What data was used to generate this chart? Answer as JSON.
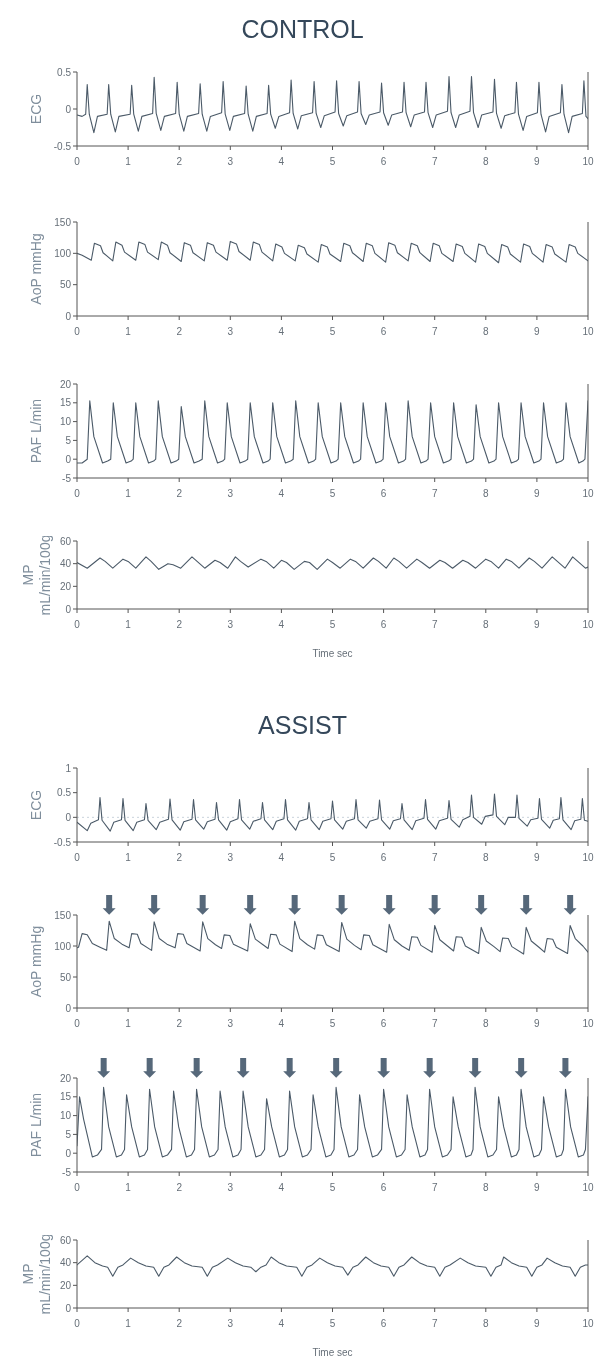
{
  "chart_data": [
    {
      "type": "line",
      "title": "CONTROL",
      "ylabel": "ECG",
      "color": "#4b5a68",
      "xlim": [
        0,
        10
      ],
      "xticks": [
        0,
        1,
        2,
        3,
        4,
        5,
        6,
        7,
        8,
        9,
        10
      ],
      "ylim": [
        -0.5,
        0.5
      ],
      "yticks": [
        -0.5,
        0,
        0.5
      ],
      "x": [
        0,
        0.1,
        0.17,
        0.2,
        0.24,
        0.33,
        0.4,
        0.59,
        0.62,
        0.66,
        0.75,
        0.82,
        1.04,
        1.07,
        1.11,
        1.2,
        1.27,
        1.48,
        1.51,
        1.55,
        1.64,
        1.71,
        1.93,
        1.96,
        2,
        2.09,
        2.16,
        2.38,
        2.41,
        2.45,
        2.54,
        2.61,
        2.83,
        2.86,
        2.9,
        2.99,
        3.06,
        3.28,
        3.31,
        3.35,
        3.44,
        3.51,
        3.72,
        3.75,
        3.79,
        3.88,
        3.95,
        4.16,
        4.19,
        4.23,
        4.32,
        4.39,
        4.61,
        4.64,
        4.68,
        4.77,
        4.84,
        5.05,
        5.08,
        5.12,
        5.21,
        5.28,
        5.49,
        5.52,
        5.56,
        5.65,
        5.72,
        5.93,
        5.96,
        6,
        6.09,
        6.16,
        6.37,
        6.4,
        6.44,
        6.53,
        6.6,
        6.8,
        6.83,
        6.87,
        6.96,
        7.03,
        7.25,
        7.28,
        7.32,
        7.41,
        7.48,
        7.69,
        7.72,
        7.76,
        7.85,
        7.92,
        8.14,
        8.17,
        8.21,
        8.3,
        8.37,
        8.57,
        8.6,
        8.64,
        8.73,
        8.8,
        9.01,
        9.04,
        9.08,
        9.17,
        9.24,
        9.46,
        9.49,
        9.53,
        9.62,
        9.69,
        9.89,
        9.92,
        9.96,
        10
      ],
      "values": [
        -0.08,
        -0.1,
        -0.07,
        0.33,
        -0.07,
        -0.32,
        -0.1,
        -0.07,
        0.33,
        -0.07,
        -0.31,
        -0.1,
        -0.07,
        0.32,
        -0.07,
        -0.3,
        -0.1,
        -0.06,
        0.43,
        -0.06,
        -0.29,
        -0.1,
        -0.06,
        0.36,
        -0.07,
        -0.3,
        -0.1,
        -0.06,
        0.34,
        -0.07,
        -0.3,
        -0.1,
        -0.05,
        0.37,
        -0.07,
        -0.29,
        -0.1,
        -0.06,
        0.31,
        -0.07,
        -0.3,
        -0.1,
        -0.06,
        0.32,
        -0.07,
        -0.26,
        -0.1,
        -0.05,
        0.39,
        -0.06,
        -0.27,
        -0.09,
        -0.05,
        0.37,
        -0.06,
        -0.25,
        -0.09,
        -0.04,
        0.38,
        -0.06,
        -0.23,
        -0.09,
        -0.04,
        0.37,
        -0.06,
        -0.21,
        -0.08,
        -0.04,
        0.35,
        -0.05,
        -0.22,
        -0.08,
        -0.04,
        0.36,
        -0.05,
        -0.24,
        -0.08,
        -0.04,
        0.36,
        -0.05,
        -0.25,
        -0.08,
        -0.03,
        0.44,
        -0.05,
        -0.25,
        -0.08,
        -0.03,
        0.44,
        -0.05,
        -0.25,
        -0.08,
        -0.04,
        0.4,
        -0.06,
        -0.26,
        -0.09,
        -0.05,
        0.36,
        -0.07,
        -0.29,
        -0.1,
        -0.05,
        0.36,
        -0.07,
        -0.31,
        -0.1,
        -0.05,
        0.33,
        -0.07,
        -0.32,
        -0.1,
        -0.06,
        0.38,
        -0.1,
        -0.13
      ]
    },
    {
      "type": "line",
      "ylabel": "AoP mmHg",
      "color": "#4b5a68",
      "xlim": [
        0,
        10
      ],
      "xticks": [
        0,
        1,
        2,
        3,
        4,
        5,
        6,
        7,
        8,
        9,
        10
      ],
      "ylim": [
        0,
        150
      ],
      "yticks": [
        0,
        50,
        100,
        150
      ],
      "x": [
        0,
        0.1,
        0.28,
        0.34,
        0.46,
        0.51,
        0.7,
        0.76,
        0.88,
        0.93,
        1.15,
        1.21,
        1.33,
        1.38,
        1.59,
        1.65,
        1.77,
        1.82,
        2.04,
        2.1,
        2.22,
        2.27,
        2.49,
        2.55,
        2.67,
        2.72,
        2.94,
        3,
        3.12,
        3.17,
        3.39,
        3.45,
        3.57,
        3.62,
        3.83,
        3.89,
        4.01,
        4.06,
        4.27,
        4.33,
        4.45,
        4.5,
        4.72,
        4.78,
        4.9,
        4.95,
        5.16,
        5.22,
        5.34,
        5.39,
        5.6,
        5.66,
        5.78,
        5.83,
        6.04,
        6.1,
        6.22,
        6.27,
        6.48,
        6.54,
        6.66,
        6.71,
        6.91,
        6.97,
        7.09,
        7.14,
        7.36,
        7.42,
        7.54,
        7.59,
        7.8,
        7.86,
        7.98,
        8.03,
        8.25,
        8.31,
        8.43,
        8.48,
        8.68,
        8.74,
        8.86,
        8.91,
        9.12,
        9.18,
        9.3,
        9.35,
        9.57,
        9.63,
        9.75,
        9.8,
        10
      ],
      "values": [
        100,
        97,
        89,
        116,
        112,
        101,
        88,
        118,
        113,
        102,
        89,
        118,
        114,
        102,
        90,
        118,
        113,
        101,
        87,
        117,
        113,
        101,
        88,
        117,
        113,
        102,
        89,
        119,
        115,
        103,
        89,
        118,
        114,
        102,
        88,
        115,
        110,
        100,
        88,
        113,
        109,
        99,
        86,
        114,
        110,
        99,
        87,
        116,
        112,
        101,
        87,
        116,
        112,
        100,
        86,
        117,
        113,
        101,
        88,
        116,
        112,
        101,
        87,
        116,
        112,
        100,
        87,
        115,
        111,
        100,
        86,
        115,
        111,
        100,
        85,
        114,
        110,
        99,
        86,
        115,
        111,
        100,
        86,
        114,
        110,
        99,
        86,
        114,
        110,
        100,
        88
      ]
    },
    {
      "type": "line",
      "ylabel": "PAF L/min",
      "color": "#4b5a68",
      "xlim": [
        0,
        10
      ],
      "xticks": [
        0,
        1,
        2,
        3,
        4,
        5,
        6,
        7,
        8,
        9,
        10
      ],
      "ylim": [
        -5,
        20
      ],
      "yticks": [
        -5,
        0,
        5,
        10,
        15,
        20
      ],
      "x": [
        0,
        0.1,
        0.2,
        0.25,
        0.33,
        0.5,
        0.6,
        0.66,
        0.71,
        0.79,
        0.96,
        1.06,
        1.1,
        1.15,
        1.23,
        1.4,
        1.5,
        1.54,
        1.59,
        1.67,
        1.84,
        1.94,
        1.99,
        2.04,
        2.12,
        2.29,
        2.39,
        2.45,
        2.5,
        2.58,
        2.75,
        2.85,
        2.89,
        2.94,
        3.02,
        3.19,
        3.29,
        3.34,
        3.39,
        3.47,
        3.64,
        3.74,
        3.78,
        3.83,
        3.91,
        4.08,
        4.18,
        4.23,
        4.28,
        4.36,
        4.53,
        4.63,
        4.67,
        4.72,
        4.8,
        4.97,
        5.07,
        5.11,
        5.16,
        5.24,
        5.41,
        5.51,
        5.55,
        5.6,
        5.68,
        5.85,
        5.95,
        5.99,
        6.04,
        6.12,
        6.29,
        6.39,
        6.43,
        6.48,
        6.56,
        6.73,
        6.83,
        6.87,
        6.92,
        7,
        7.17,
        7.27,
        7.32,
        7.37,
        7.45,
        7.62,
        7.72,
        7.76,
        7.81,
        7.89,
        8.06,
        8.16,
        8.2,
        8.25,
        8.33,
        8.5,
        8.6,
        8.64,
        8.69,
        8.77,
        8.94,
        9.04,
        9.08,
        9.13,
        9.21,
        9.38,
        9.48,
        9.52,
        9.57,
        9.65,
        9.82,
        9.9,
        9.94,
        10
      ],
      "values": [
        -1,
        -1,
        0,
        15.5,
        6,
        -1,
        -0.5,
        0,
        15,
        6,
        -1,
        -0.5,
        0,
        15,
        6,
        -1,
        -0.5,
        0,
        15.5,
        6,
        -1,
        -0.5,
        0,
        14,
        6,
        -1,
        -0.5,
        0,
        15.5,
        6,
        -1,
        -0.5,
        0,
        15,
        6,
        -1,
        -0.5,
        0,
        15,
        6,
        -1,
        -0.5,
        0,
        15,
        6,
        -1,
        -0.5,
        0,
        15.5,
        6,
        -1,
        -0.5,
        0,
        15,
        6,
        -1,
        -0.5,
        0,
        15,
        6,
        -1,
        -0.5,
        0,
        15,
        6,
        -1,
        -0.5,
        0,
        15,
        6,
        -1,
        -0.5,
        0,
        15.5,
        6,
        -1,
        -0.5,
        0,
        15,
        6,
        -1,
        -0.5,
        0,
        15,
        6,
        -1,
        -0.5,
        0,
        14.5,
        6,
        -1,
        -0.5,
        0,
        15,
        6,
        -1,
        -0.5,
        0,
        15,
        6,
        -1,
        -0.5,
        0,
        15,
        6,
        -1,
        -0.5,
        0,
        15,
        6,
        -1,
        -0.5,
        0,
        15.5
      ]
    },
    {
      "type": "line",
      "ylabel": "MP mL/min/100g",
      "xlabel": "Time sec",
      "color": "#4b5a68",
      "xlim": [
        0,
        10
      ],
      "xticks": [
        0,
        1,
        2,
        3,
        4,
        5,
        6,
        7,
        8,
        9,
        10
      ],
      "ylim": [
        0,
        60
      ],
      "yticks": [
        0,
        20,
        40,
        60
      ],
      "x": [
        0,
        0.2,
        0.45,
        0.55,
        0.7,
        0.9,
        1,
        1.15,
        1.35,
        1.45,
        1.6,
        1.78,
        1.88,
        2.03,
        2.25,
        2.35,
        2.5,
        2.7,
        2.8,
        2.95,
        3.1,
        3.2,
        3.35,
        3.6,
        3.7,
        3.85,
        4,
        4.1,
        4.25,
        4.45,
        4.55,
        4.7,
        4.9,
        5,
        5.15,
        5.35,
        5.45,
        5.6,
        5.8,
        5.9,
        6.05,
        6.2,
        6.3,
        6.45,
        6.65,
        6.75,
        6.9,
        7.1,
        7.2,
        7.35,
        7.55,
        7.65,
        7.8,
        8,
        8.1,
        8.25,
        8.4,
        8.5,
        8.65,
        8.85,
        8.95,
        9.1,
        9.3,
        9.4,
        9.55,
        9.7,
        9.8,
        9.95,
        10
      ],
      "values": [
        41,
        36,
        45,
        42,
        36,
        44,
        42,
        36,
        46,
        42,
        35,
        40,
        39,
        36,
        46,
        42,
        36,
        43,
        41,
        36,
        46,
        42,
        37,
        44,
        42,
        36,
        43,
        41,
        35,
        42,
        41,
        35,
        44,
        41,
        36,
        44,
        42,
        36,
        45,
        42,
        36,
        45,
        42,
        36,
        44,
        41,
        36,
        43,
        41,
        36,
        43,
        41,
        36,
        44,
        42,
        36,
        44,
        42,
        36,
        45,
        42,
        36,
        46,
        42,
        36,
        46,
        42,
        36,
        37
      ]
    },
    {
      "type": "line",
      "title": "ASSIST",
      "ylabel": "ECG",
      "color": "#4b5a68",
      "xlim": [
        0,
        10
      ],
      "xticks": [
        0,
        1,
        2,
        3,
        4,
        5,
        6,
        7,
        8,
        9,
        10
      ],
      "ylim": [
        -0.5,
        1
      ],
      "yticks": [
        -0.5,
        0,
        0.5,
        1
      ],
      "ref_lines": [
        {
          "axis": "y",
          "value": 0,
          "color": "#c9d3dc",
          "line_style": "dotted"
        }
      ],
      "x": [
        0,
        0.2,
        0.27,
        0.42,
        0.45,
        0.49,
        0.65,
        0.72,
        0.87,
        0.9,
        0.94,
        1.1,
        1.17,
        1.32,
        1.35,
        1.39,
        1.55,
        1.62,
        1.79,
        1.82,
        1.86,
        2.02,
        2.09,
        2.25,
        2.28,
        2.32,
        2.48,
        2.55,
        2.7,
        2.73,
        2.77,
        2.93,
        3,
        3.15,
        3.18,
        3.22,
        3.38,
        3.45,
        3.6,
        3.63,
        3.67,
        3.83,
        3.9,
        4.05,
        4.08,
        4.12,
        4.28,
        4.35,
        4.51,
        4.54,
        4.58,
        4.74,
        4.81,
        4.97,
        5,
        5.04,
        5.2,
        5.27,
        5.43,
        5.46,
        5.5,
        5.66,
        5.73,
        5.89,
        5.92,
        5.96,
        6.12,
        6.19,
        6.33,
        6.36,
        6.4,
        6.56,
        6.63,
        6.79,
        6.82,
        6.86,
        7.02,
        7.09,
        7.25,
        7.28,
        7.32,
        7.48,
        7.55,
        7.69,
        7.72,
        7.76,
        7.92,
        7.99,
        8.14,
        8.17,
        8.21,
        8.37,
        8.44,
        8.58,
        8.61,
        8.65,
        8.81,
        8.88,
        9.02,
        9.05,
        9.09,
        9.25,
        9.32,
        9.44,
        9.47,
        9.51,
        9.67,
        9.74,
        9.86,
        9.89,
        9.93,
        10
      ],
      "values": [
        -0.1,
        -0.27,
        -0.12,
        -0.05,
        0.4,
        -0.06,
        -0.28,
        -0.1,
        -0.05,
        0.38,
        -0.06,
        -0.27,
        -0.1,
        -0.05,
        0.28,
        -0.06,
        -0.25,
        -0.1,
        -0.04,
        0.37,
        -0.05,
        -0.26,
        -0.09,
        -0.04,
        0.36,
        -0.05,
        -0.24,
        -0.09,
        -0.04,
        0.3,
        -0.05,
        -0.26,
        -0.09,
        -0.03,
        0.36,
        -0.05,
        -0.24,
        -0.08,
        -0.03,
        0.3,
        -0.05,
        -0.25,
        -0.08,
        -0.03,
        0.36,
        -0.05,
        -0.26,
        -0.08,
        -0.03,
        0.3,
        -0.05,
        -0.25,
        -0.08,
        -0.03,
        0.33,
        -0.05,
        -0.24,
        -0.08,
        -0.03,
        0.36,
        -0.05,
        -0.22,
        -0.08,
        -0.03,
        0.35,
        -0.05,
        -0.24,
        -0.07,
        -0.03,
        0.28,
        -0.05,
        -0.25,
        -0.07,
        -0.02,
        0.36,
        -0.04,
        -0.24,
        -0.07,
        -0.02,
        0.34,
        -0.04,
        -0.2,
        -0.05,
        0.02,
        0.45,
        0,
        -0.14,
        0.02,
        0.05,
        0.47,
        0.02,
        -0.15,
        0,
        0,
        0.45,
        -0.02,
        -0.18,
        -0.05,
        -0.02,
        0.38,
        -0.04,
        -0.22,
        -0.06,
        -0.03,
        0.4,
        -0.05,
        -0.25,
        -0.07,
        -0.04,
        0.38,
        -0.06,
        -0.08
      ]
    },
    {
      "type": "line",
      "ylabel": "AoP mmHg",
      "color": "#4b5a68",
      "xlim": [
        0,
        10
      ],
      "xticks": [
        0,
        1,
        2,
        3,
        4,
        5,
        6,
        7,
        8,
        9,
        10
      ],
      "ylim": [
        0,
        150
      ],
      "yticks": [
        0,
        50,
        100,
        150
      ],
      "annotations": [
        {
          "text": "⬇",
          "x": 0.63,
          "y": 140
        },
        {
          "text": "⬇",
          "x": 1.51,
          "y": 139
        },
        {
          "text": "⬇",
          "x": 2.46,
          "y": 139
        },
        {
          "text": "⬇",
          "x": 3.39,
          "y": 136
        },
        {
          "text": "⬇",
          "x": 4.26,
          "y": 140
        },
        {
          "text": "⬇",
          "x": 5.18,
          "y": 138
        },
        {
          "text": "⬇",
          "x": 6.11,
          "y": 135
        },
        {
          "text": "⬇",
          "x": 7,
          "y": 133
        },
        {
          "text": "⬇",
          "x": 7.91,
          "y": 130
        },
        {
          "text": "⬇",
          "x": 8.79,
          "y": 130
        },
        {
          "text": "⬇",
          "x": 9.65,
          "y": 133
        }
      ],
      "x": [
        0,
        0.03,
        0.1,
        0.2,
        0.3,
        0.45,
        0.58,
        0.63,
        0.73,
        0.88,
        1.02,
        1.07,
        1.18,
        1.25,
        1.46,
        1.51,
        1.61,
        1.76,
        1.92,
        1.97,
        2.08,
        2.15,
        2.41,
        2.46,
        2.56,
        2.71,
        2.83,
        2.88,
        2.99,
        3.06,
        3.34,
        3.39,
        3.49,
        3.64,
        3.74,
        3.79,
        3.9,
        3.97,
        4.21,
        4.26,
        4.36,
        4.51,
        4.65,
        4.7,
        4.81,
        4.88,
        5.13,
        5.18,
        5.28,
        5.43,
        5.56,
        5.61,
        5.72,
        5.79,
        6.06,
        6.11,
        6.21,
        6.36,
        6.5,
        6.55,
        6.66,
        6.73,
        6.95,
        7,
        7.1,
        7.25,
        7.37,
        7.42,
        7.53,
        7.6,
        7.86,
        7.91,
        8.01,
        8.16,
        8.28,
        8.33,
        8.44,
        8.51,
        8.74,
        8.79,
        8.89,
        9.04,
        9.15,
        9.2,
        9.31,
        9.38,
        9.6,
        9.65,
        9.75,
        9.9,
        10
      ],
      "values": [
        97,
        98,
        120,
        118,
        104,
        98,
        93,
        140,
        112,
        103,
        97,
        120,
        119,
        104,
        93,
        139,
        112,
        103,
        97,
        120,
        119,
        104,
        92,
        139,
        112,
        102,
        96,
        118,
        117,
        103,
        92,
        136,
        111,
        102,
        96,
        119,
        118,
        103,
        91,
        140,
        112,
        102,
        95,
        118,
        117,
        102,
        91,
        138,
        111,
        101,
        94,
        118,
        117,
        102,
        90,
        135,
        110,
        100,
        93,
        115,
        114,
        101,
        90,
        133,
        110,
        100,
        92,
        115,
        114,
        100,
        88,
        130,
        108,
        99,
        91,
        113,
        112,
        99,
        87,
        130,
        108,
        98,
        90,
        112,
        111,
        98,
        88,
        133,
        112,
        100,
        90
      ]
    },
    {
      "type": "line",
      "ylabel": "PAF L/min",
      "color": "#4b5a68",
      "xlim": [
        0,
        10
      ],
      "xticks": [
        0,
        1,
        2,
        3,
        4,
        5,
        6,
        7,
        8,
        9,
        10
      ],
      "ylim": [
        -5,
        20
      ],
      "yticks": [
        -5,
        0,
        5,
        10,
        15,
        20
      ],
      "annotations": [
        {
          "text": "⬇",
          "x": 0.52,
          "y": 17.5
        },
        {
          "text": "⬇",
          "x": 1.42,
          "y": 17
        },
        {
          "text": "⬇",
          "x": 2.34,
          "y": 17
        },
        {
          "text": "⬇",
          "x": 3.25,
          "y": 16.5
        },
        {
          "text": "⬇",
          "x": 4.16,
          "y": 16.5
        },
        {
          "text": "⬇",
          "x": 5.07,
          "y": 17.5
        },
        {
          "text": "⬇",
          "x": 6,
          "y": 17
        },
        {
          "text": "⬇",
          "x": 6.9,
          "y": 17
        },
        {
          "text": "⬇",
          "x": 7.79,
          "y": 17.5
        },
        {
          "text": "⬇",
          "x": 8.69,
          "y": 17
        },
        {
          "text": "⬇",
          "x": 9.56,
          "y": 17
        }
      ],
      "x": [
        0,
        0.05,
        0.13,
        0.3,
        0.4,
        0.48,
        0.52,
        0.62,
        0.77,
        0.87,
        0.93,
        0.97,
        1.07,
        1.22,
        1.32,
        1.38,
        1.42,
        1.52,
        1.67,
        1.77,
        1.85,
        1.89,
        1.99,
        2.14,
        2.24,
        2.3,
        2.34,
        2.44,
        2.59,
        2.69,
        2.76,
        2.8,
        2.9,
        3.05,
        3.15,
        3.21,
        3.25,
        3.35,
        3.5,
        3.6,
        3.67,
        3.71,
        3.81,
        3.96,
        4.06,
        4.12,
        4.16,
        4.26,
        4.41,
        4.51,
        4.58,
        4.62,
        4.72,
        4.87,
        4.97,
        5.03,
        5.07,
        5.17,
        5.32,
        5.42,
        5.49,
        5.53,
        5.63,
        5.78,
        5.88,
        5.96,
        6,
        6.1,
        6.25,
        6.35,
        6.42,
        6.46,
        6.56,
        6.71,
        6.81,
        6.86,
        6.9,
        7,
        7.15,
        7.25,
        7.32,
        7.36,
        7.46,
        7.61,
        7.71,
        7.75,
        7.79,
        7.89,
        8.04,
        8.14,
        8.21,
        8.25,
        8.35,
        8.5,
        8.6,
        8.65,
        8.69,
        8.79,
        8.94,
        9.04,
        9.09,
        9.13,
        9.23,
        9.38,
        9.48,
        9.52,
        9.56,
        9.66,
        9.81,
        9.91,
        9.95,
        10
      ],
      "values": [
        2,
        15,
        9,
        -1,
        -0.5,
        1,
        17.5,
        7,
        -1,
        -0.5,
        1,
        15.5,
        7,
        -1,
        -0.5,
        1,
        17,
        7,
        -1,
        -0.5,
        1,
        16.5,
        7,
        -1,
        -0.5,
        1,
        17,
        7,
        -1,
        -0.5,
        1,
        16.5,
        7,
        -1,
        -0.5,
        1,
        16.5,
        7,
        -1,
        -0.5,
        1,
        14.5,
        7,
        -1,
        -0.5,
        1,
        16.5,
        7,
        -1,
        -0.5,
        1,
        15.5,
        7,
        -1,
        -0.5,
        1,
        17.5,
        7,
        -1,
        -0.5,
        1,
        15.5,
        7,
        -1,
        -0.5,
        1,
        17,
        7,
        -1,
        -0.5,
        1,
        15.5,
        7,
        -1,
        -0.5,
        1,
        17,
        7,
        -1,
        -0.5,
        1,
        15,
        7,
        -1,
        -0.5,
        1,
        17.5,
        7,
        -1,
        -0.5,
        1,
        15,
        7,
        -1,
        -0.5,
        1,
        17,
        7,
        -1,
        -0.5,
        1,
        15,
        7,
        -1,
        -0.5,
        1,
        17,
        7,
        -1,
        -0.5,
        1,
        15
      ]
    },
    {
      "type": "line",
      "ylabel": "MP mL/min/100g",
      "xlabel": "Time sec",
      "color": "#4b5a68",
      "xlim": [
        0,
        10
      ],
      "xticks": [
        0,
        1,
        2,
        3,
        4,
        5,
        6,
        7,
        8,
        9,
        10
      ],
      "ylim": [
        0,
        60
      ],
      "yticks": [
        0,
        20,
        40,
        60
      ],
      "x": [
        0,
        0.2,
        0.35,
        0.5,
        0.6,
        0.7,
        0.8,
        0.9,
        1.05,
        1.2,
        1.35,
        1.5,
        1.6,
        1.7,
        1.8,
        1.95,
        2.1,
        2.25,
        2.45,
        2.55,
        2.65,
        2.75,
        2.95,
        3.1,
        3.25,
        3.4,
        3.5,
        3.6,
        3.7,
        3.8,
        3.95,
        4.1,
        4.3,
        4.4,
        4.5,
        4.6,
        4.75,
        4.9,
        5.05,
        5.2,
        5.3,
        5.4,
        5.5,
        5.65,
        5.8,
        5.95,
        6.1,
        6.2,
        6.3,
        6.4,
        6.55,
        6.7,
        6.85,
        7,
        7.1,
        7.2,
        7.3,
        7.5,
        7.65,
        7.8,
        8,
        8.1,
        8.2,
        8.3,
        8.35,
        8.5,
        8.65,
        8.8,
        8.9,
        9,
        9.1,
        9.2,
        9.35,
        9.5,
        9.65,
        9.75,
        9.85,
        9.95,
        10
      ],
      "values": [
        38,
        46,
        40,
        37,
        36,
        28,
        36,
        38,
        44,
        40,
        37,
        36,
        28,
        36,
        38,
        45,
        40,
        37,
        36,
        28,
        36,
        38,
        44,
        40,
        37,
        36,
        32,
        36,
        38,
        45,
        40,
        37,
        36,
        28,
        36,
        38,
        44,
        40,
        37,
        36,
        29,
        36,
        38,
        45,
        40,
        37,
        36,
        28,
        36,
        38,
        45,
        40,
        37,
        36,
        28,
        36,
        38,
        44,
        40,
        37,
        36,
        28,
        36,
        38,
        45,
        40,
        37,
        36,
        28,
        36,
        38,
        44,
        40,
        37,
        36,
        28,
        36,
        38,
        38
      ]
    }
  ]
}
